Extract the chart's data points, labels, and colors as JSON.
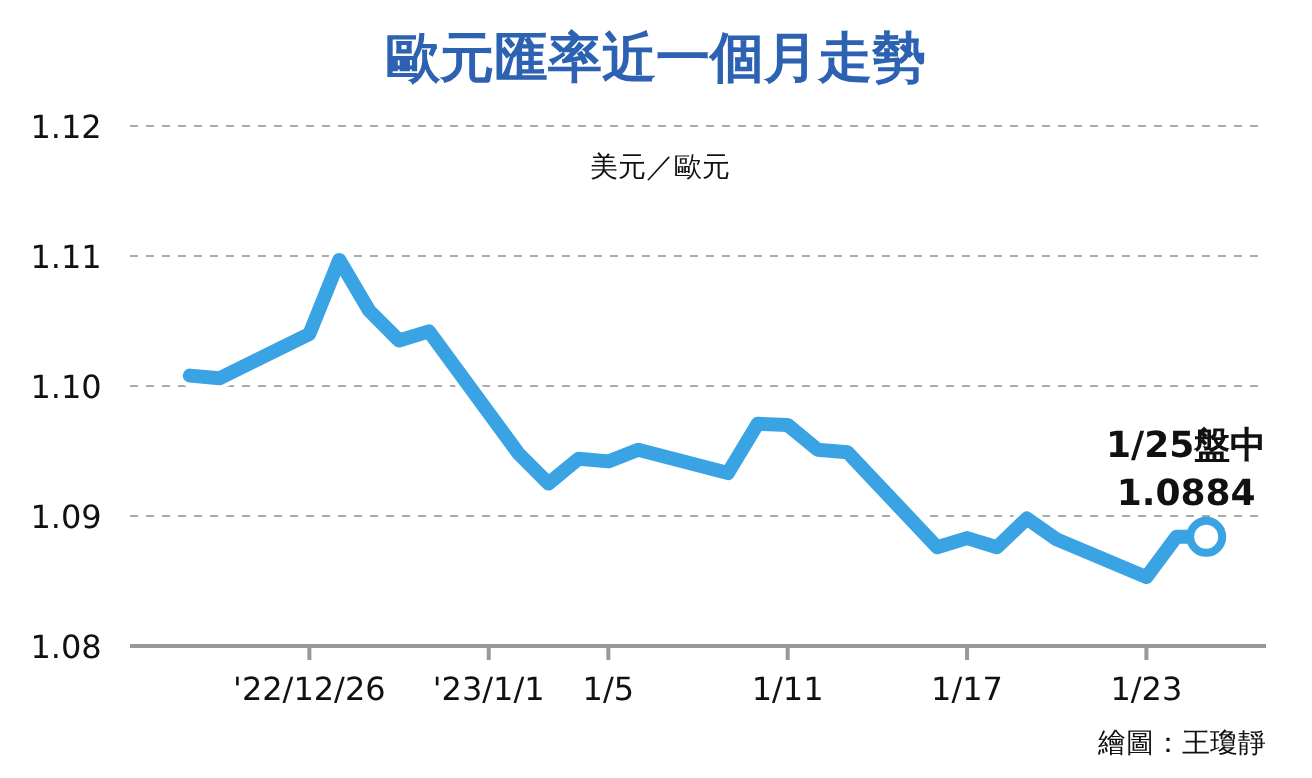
{
  "chart_data": {
    "type": "line",
    "title": "歐元匯率近一個月走勢",
    "ylabel": "美元／歐元",
    "x": [
      "2022-12-22",
      "2022-12-23",
      "2022-12-26",
      "2022-12-27",
      "2022-12-28",
      "2022-12-29",
      "2022-12-30",
      "2023-01-02",
      "2023-01-03",
      "2023-01-04",
      "2023-01-05",
      "2023-01-06",
      "2023-01-09",
      "2023-01-10",
      "2023-01-11",
      "2023-01-12",
      "2023-01-13",
      "2023-01-16",
      "2023-01-17",
      "2023-01-18",
      "2023-01-19",
      "2023-01-20",
      "2023-01-23",
      "2023-01-24",
      "2023-01-25"
    ],
    "series": [
      {
        "color": "#3aa3e3",
        "values": [
          1.1008,
          1.1006,
          1.104,
          1.1097,
          1.1058,
          1.1035,
          1.1042,
          1.0948,
          1.0925,
          1.0944,
          1.0942,
          1.0951,
          1.0933,
          1.0971,
          1.097,
          1.0951,
          1.0949,
          1.0876,
          1.0883,
          1.0876,
          1.0898,
          1.0882,
          1.0853,
          1.0884,
          1.0884
        ]
      }
    ],
    "xlim": [
      "2022-12-20",
      "2023-01-27"
    ],
    "xticks": [
      {
        "value": "2022-12-26",
        "label": "'22/12/26"
      },
      {
        "value": "2023-01-01",
        "label": "'23/1/1"
      },
      {
        "value": "2023-01-05",
        "label": "1/5"
      },
      {
        "value": "2023-01-11",
        "label": "1/11"
      },
      {
        "value": "2023-01-17",
        "label": "1/17"
      },
      {
        "value": "2023-01-23",
        "label": "1/23"
      }
    ],
    "ylim": [
      1.08,
      1.12
    ],
    "yticks": [
      {
        "value": 1.08,
        "label": "1.08"
      },
      {
        "value": 1.09,
        "label": "1.09"
      },
      {
        "value": 1.1,
        "label": "1.10"
      },
      {
        "value": 1.11,
        "label": "1.11"
      },
      {
        "value": 1.12,
        "label": "1.12"
      }
    ],
    "grid": "y",
    "line_style": "solid",
    "annotations": [
      {
        "text": "1/25盤中\n1.0884",
        "x": "2023-01-25",
        "y": 1.0884
      },
      "繪圖：王瓊靜"
    ]
  }
}
